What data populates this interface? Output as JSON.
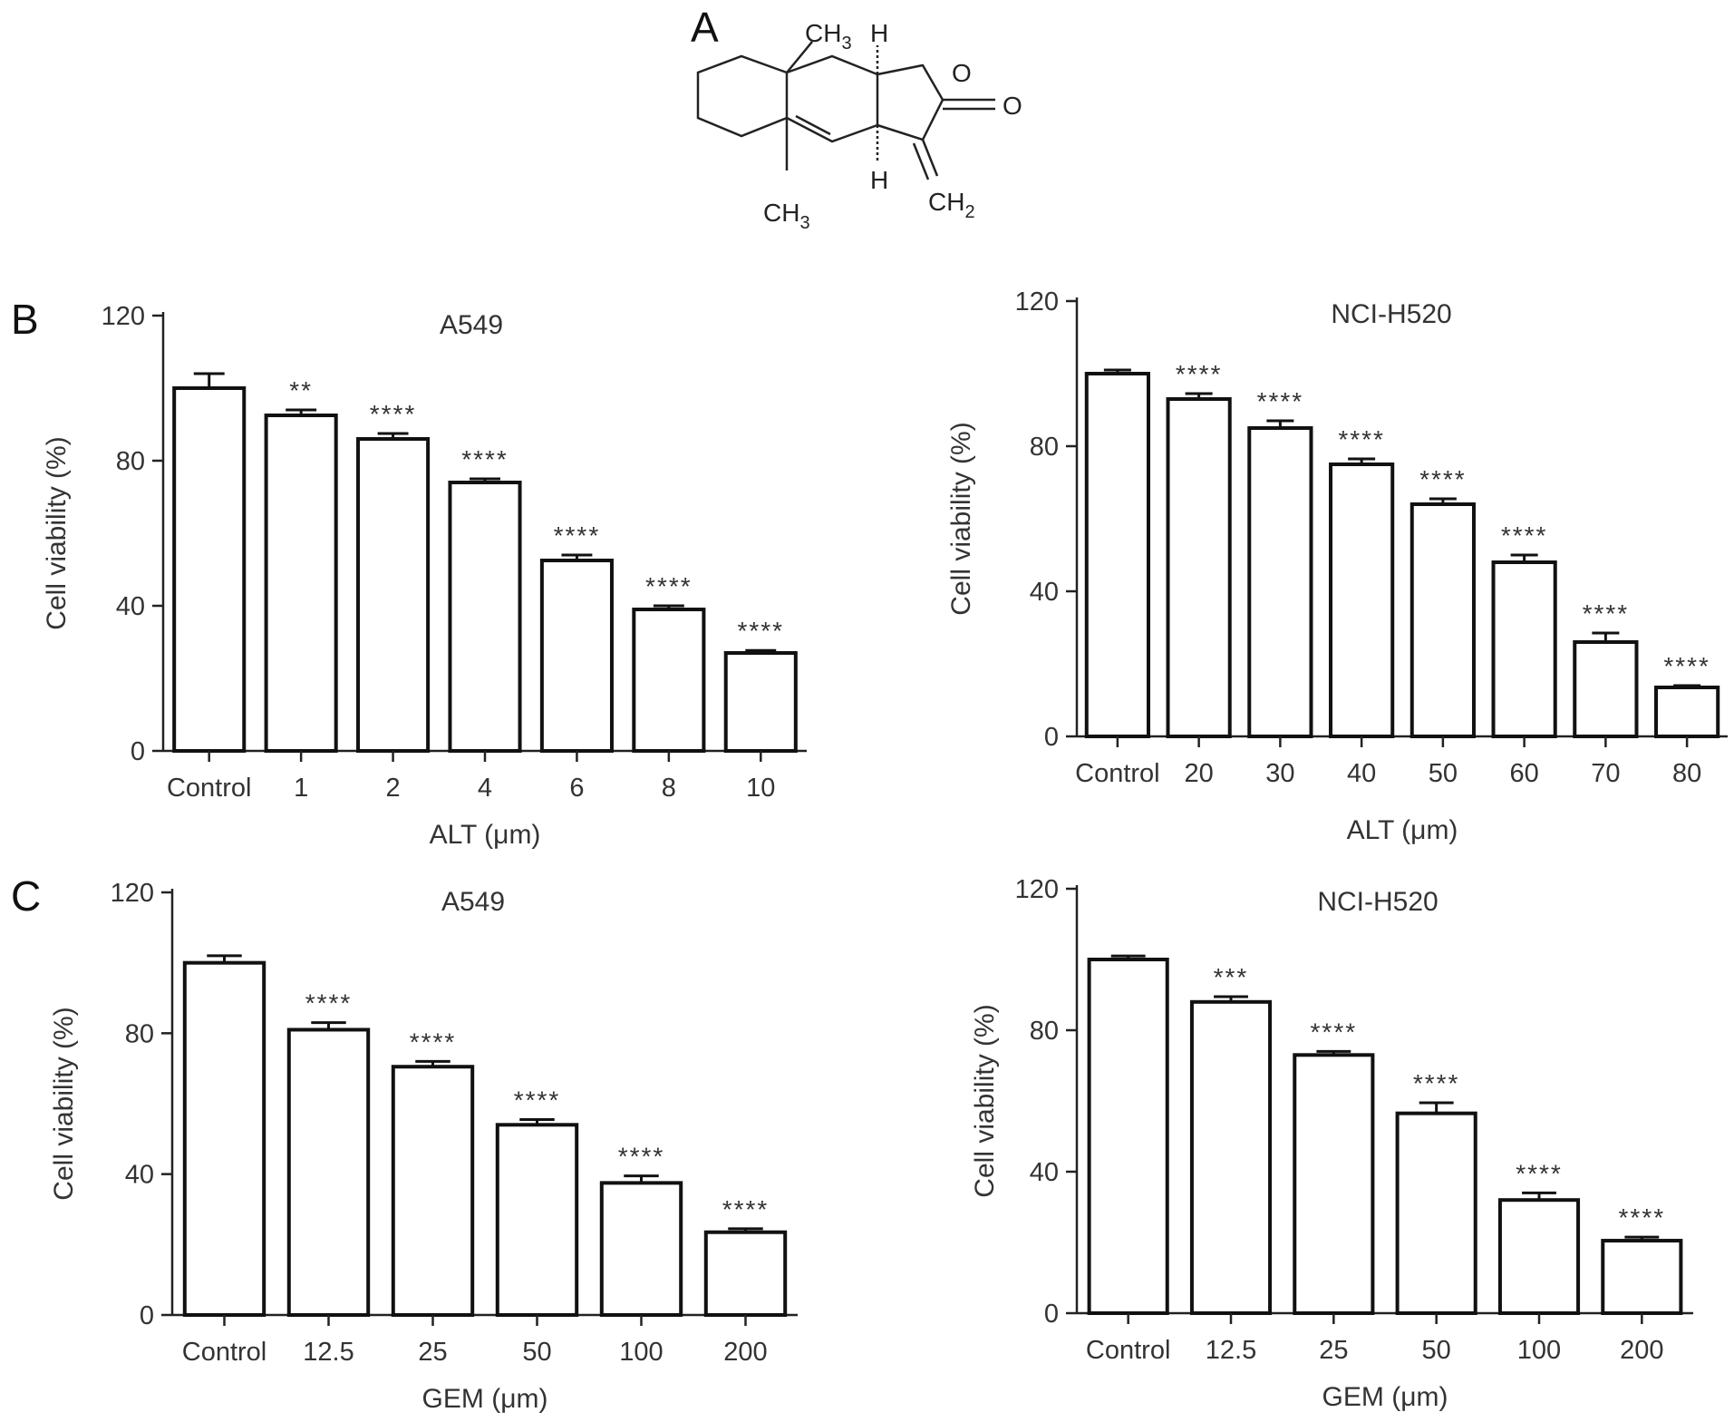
{
  "panels": {
    "a": "A",
    "b": "B",
    "c": "C"
  },
  "molecule": {
    "ch3_top": "CH",
    "ch3_top_sub": "3",
    "h_top": "H",
    "o_ring": "O",
    "o_carbonyl": "O",
    "h_bottom": "H",
    "ch2": "CH",
    "ch2_sub": "2",
    "ch3_bottom": "CH",
    "ch3_bottom_sub": "3"
  },
  "chart_data": [
    {
      "id": "b-left",
      "type": "bar",
      "title": "A549",
      "xlabel": "ALT (μm)",
      "ylabel": "Cell viability (%)",
      "ylim": [
        0,
        120
      ],
      "yticks": [
        0,
        40,
        80,
        120
      ],
      "categories": [
        "Control",
        "1",
        "2",
        "4",
        "6",
        "8",
        "10"
      ],
      "values": [
        100,
        92.5,
        86,
        74,
        52.5,
        39,
        27
      ],
      "errors": [
        4,
        1.5,
        1.5,
        1,
        1.5,
        1,
        0.7
      ],
      "significance": [
        "",
        "**",
        "****",
        "****",
        "****",
        "****",
        "****"
      ],
      "grid": false
    },
    {
      "id": "b-right",
      "type": "bar",
      "title": "NCI-H520",
      "xlabel": "ALT (μm)",
      "ylabel": "Cell viability (%)",
      "ylim": [
        0,
        120
      ],
      "yticks": [
        0,
        40,
        80,
        120
      ],
      "categories": [
        "Control",
        "20",
        "30",
        "40",
        "50",
        "60",
        "70",
        "80"
      ],
      "values": [
        100,
        93,
        85,
        75,
        64,
        48,
        26,
        13.5
      ],
      "errors": [
        1,
        1.5,
        2,
        1.5,
        1.5,
        2,
        2.5,
        0.5
      ],
      "significance": [
        "",
        "****",
        "****",
        "****",
        "****",
        "****",
        "****",
        "****"
      ],
      "grid": false
    },
    {
      "id": "c-left",
      "type": "bar",
      "title": "A549",
      "xlabel": "GEM (μm)",
      "ylabel": "Cell viability (%)",
      "ylim": [
        0,
        120
      ],
      "yticks": [
        0,
        40,
        80,
        120
      ],
      "categories": [
        "Control",
        "12.5",
        "25",
        "50",
        "100",
        "200"
      ],
      "values": [
        100,
        81,
        70.5,
        54,
        37.5,
        23.5
      ],
      "errors": [
        2,
        2,
        1.5,
        1.5,
        2,
        1
      ],
      "significance": [
        "",
        "****",
        "****",
        "****",
        "****",
        "****"
      ],
      "grid": false
    },
    {
      "id": "c-right",
      "type": "bar",
      "title": "NCI-H520",
      "xlabel": "GEM (μm)",
      "ylabel": "Cell viability (%)",
      "ylim": [
        0,
        120
      ],
      "yticks": [
        0,
        40,
        80,
        120
      ],
      "categories": [
        "Control",
        "12.5",
        "25",
        "50",
        "100",
        "200"
      ],
      "values": [
        100,
        88,
        73,
        56.5,
        32,
        20.5
      ],
      "errors": [
        1,
        1.5,
        1,
        3,
        2,
        1
      ],
      "significance": [
        "",
        "***",
        "****",
        "****",
        "****",
        "****"
      ],
      "grid": false
    }
  ]
}
